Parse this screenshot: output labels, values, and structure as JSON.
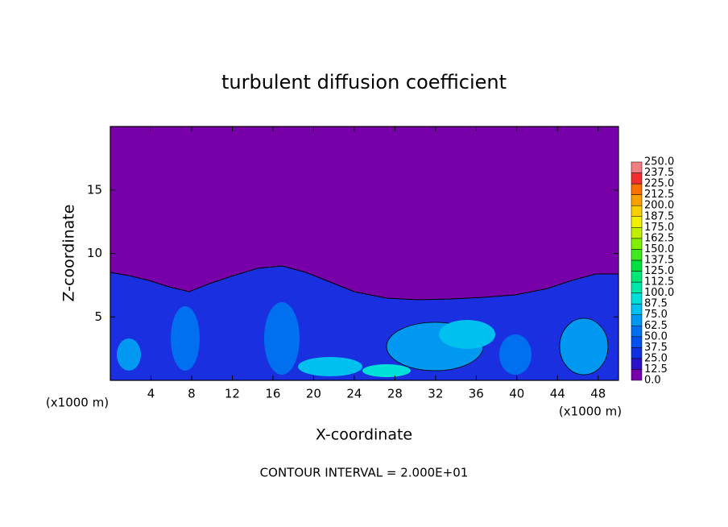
{
  "chart_data": {
    "type": "contour",
    "title": "turbulent diffusion coefficient",
    "x_label": "X-coordinate",
    "y_label": "Z-coordinate",
    "x_unit_label": "(x1000 m)",
    "annotation": "CONTOUR INTERVAL = 2.000E+01",
    "xlim": [
      0,
      50
    ],
    "ylim": [
      0,
      20
    ],
    "xticks": [
      4,
      8,
      12,
      16,
      20,
      24,
      28,
      32,
      36,
      40,
      44,
      48
    ],
    "yticks": [
      5,
      10,
      15
    ],
    "colorbar": {
      "levels": [
        {
          "value": 0,
          "label": "0.0"
        },
        12.5,
        {
          "value": 25,
          "label": "25.0"
        },
        37.5,
        {
          "value": 50,
          "label": "50.0"
        },
        62.5,
        {
          "value": 75,
          "label": "75.0"
        },
        87.5,
        {
          "value": 100,
          "label": "100.0"
        },
        112.5,
        {
          "value": 125,
          "label": "125.0"
        },
        137.5,
        {
          "value": 150,
          "label": "150.0"
        },
        162.5,
        {
          "value": 175,
          "label": "175.0"
        },
        187.5,
        {
          "value": 200,
          "label": "200.0"
        },
        212.5,
        {
          "value": 225,
          "label": "225.0"
        },
        237.5,
        {
          "value": 250,
          "label": "250.0"
        }
      ],
      "colors": [
        "#7800a8",
        "#2a10c8",
        "#1030e0",
        "#0050f0",
        "#0070f0",
        "#0098f0",
        "#00c0f0",
        "#00e0d8",
        "#00e8a8",
        "#00e878",
        "#00e040",
        "#40e820",
        "#80f000",
        "#c0f000",
        "#f0f000",
        "#f8d000",
        "#f8a000",
        "#f87000",
        "#f03030",
        "#f08080"
      ]
    }
  }
}
